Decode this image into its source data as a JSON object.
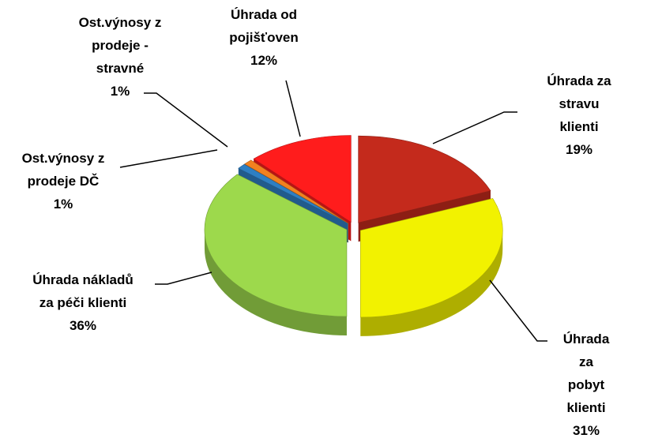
{
  "chart_data": {
    "type": "pie3d",
    "categories": [
      "Úhrada za\nstravu klienti",
      "Úhrada za\npobyt klienti",
      "Úhrada nákladů\nza péči klienti",
      "Ost.výnosy z\nprodeje DČ",
      "Ost.výnosy z\nprodeje -\nstravné",
      "Úhrada od\npojišťoven"
    ],
    "values": [
      19,
      31,
      36,
      1,
      1,
      12
    ],
    "value_labels": [
      "19%",
      "31%",
      "36%",
      "1%",
      "1%",
      "12%"
    ],
    "colors": [
      "#c42a1c",
      "#f2f200",
      "#9dd94c",
      "#2e7fc2",
      "#f2811f",
      "#ff1c1c"
    ]
  }
}
